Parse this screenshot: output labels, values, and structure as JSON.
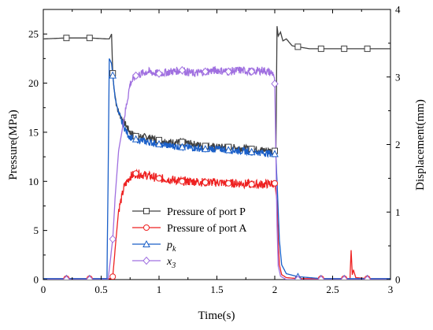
{
  "chart_data": {
    "type": "line",
    "xlabel": "Time(s)",
    "ylabel_left": "Pressure(MPa)",
    "ylabel_right": "Displacement(mm)",
    "xlim": [
      0,
      3
    ],
    "ylim_left": [
      0,
      27.5
    ],
    "ylim_right": [
      0,
      4
    ],
    "x_ticks": [
      "0",
      "0.5",
      "1",
      "1.5",
      "2",
      "2.5",
      "3"
    ],
    "y_left_ticks": [
      "0",
      "5",
      "10",
      "15",
      "20",
      "25"
    ],
    "y_right_ticks": [
      "0",
      "1",
      "2",
      "3",
      "4"
    ],
    "legend_position": "lower-center",
    "series": [
      {
        "name": "Pressure of port P",
        "axis": "left",
        "color": "#404040",
        "marker": "square",
        "x": [
          0,
          0.2,
          0.4,
          0.55,
          0.57,
          0.59,
          0.6,
          0.61,
          0.63,
          0.65,
          0.7,
          0.75,
          0.8,
          0.9,
          1.0,
          1.1,
          1.2,
          1.3,
          1.4,
          1.5,
          1.6,
          1.7,
          1.8,
          1.9,
          2.0,
          2.01,
          2.02,
          2.03,
          2.05,
          2.07,
          2.1,
          2.15,
          2.2,
          2.3,
          2.4,
          2.6,
          2.8,
          3.0
        ],
        "y": [
          24.5,
          24.6,
          24.6,
          24.5,
          24.5,
          25.0,
          21.0,
          19.5,
          18.0,
          17.0,
          16.0,
          15.0,
          14.6,
          14.5,
          14.2,
          14.0,
          14.0,
          13.8,
          13.6,
          13.5,
          13.5,
          13.4,
          13.3,
          13.2,
          13.1,
          13.3,
          25.8,
          24.8,
          25.2,
          24.3,
          24.5,
          23.8,
          23.7,
          23.5,
          23.5,
          23.5,
          23.5,
          23.5
        ]
      },
      {
        "name": "Pressure of port A",
        "axis": "left",
        "color": "#ee2222",
        "marker": "circle",
        "x": [
          0,
          0.2,
          0.4,
          0.58,
          0.6,
          0.62,
          0.65,
          0.7,
          0.75,
          0.8,
          0.9,
          1.0,
          1.1,
          1.2,
          1.3,
          1.4,
          1.5,
          1.6,
          1.7,
          1.8,
          1.9,
          2.0,
          2.02,
          2.03,
          2.04,
          2.06,
          2.1,
          2.2,
          2.4,
          2.6,
          2.65,
          2.66,
          2.67,
          2.68,
          2.7,
          2.8,
          3.0
        ],
        "y": [
          0.1,
          0.1,
          0.1,
          0.1,
          0.3,
          3.0,
          7.0,
          9.5,
          10.5,
          10.8,
          10.6,
          10.3,
          10.2,
          10.0,
          10.0,
          9.9,
          9.9,
          9.8,
          9.8,
          9.7,
          9.7,
          9.8,
          8.0,
          4.0,
          1.5,
          0.5,
          0.2,
          0.1,
          0.1,
          0.1,
          0.1,
          3.0,
          0.5,
          1.0,
          0.2,
          0.1,
          0.1
        ]
      },
      {
        "name": "p_k",
        "axis": "left",
        "color": "#1a5fc8",
        "marker": "triangle",
        "x": [
          0,
          0.2,
          0.4,
          0.55,
          0.56,
          0.57,
          0.59,
          0.6,
          0.62,
          0.65,
          0.68,
          0.72,
          0.75,
          0.8,
          0.9,
          1.0,
          1.1,
          1.2,
          1.3,
          1.4,
          1.5,
          1.6,
          1.7,
          1.8,
          1.9,
          2.0,
          2.01,
          2.02,
          2.04,
          2.06,
          2.1,
          2.2,
          2.4,
          2.6,
          2.8,
          3.0
        ],
        "y": [
          0.1,
          0.1,
          0.1,
          0.1,
          10.0,
          22.5,
          22.0,
          20.8,
          18.5,
          17.0,
          16.0,
          15.0,
          14.5,
          14.3,
          14.0,
          13.8,
          13.6,
          13.5,
          13.4,
          13.3,
          13.3,
          13.2,
          13.1,
          13.0,
          12.9,
          12.8,
          12.5,
          10.0,
          4.0,
          1.5,
          0.6,
          0.3,
          0.1,
          0.1,
          0.1,
          0.1
        ]
      },
      {
        "name": "x_3",
        "axis": "right",
        "color": "#a070e0",
        "marker": "diamond",
        "x": [
          0,
          0.2,
          0.4,
          0.56,
          0.58,
          0.6,
          0.62,
          0.65,
          0.7,
          0.75,
          0.8,
          0.9,
          1.0,
          1.1,
          1.2,
          1.3,
          1.4,
          1.5,
          1.6,
          1.7,
          1.8,
          1.9,
          1.99,
          2.0,
          2.01,
          2.02,
          2.03,
          2.05,
          2.1,
          2.2,
          2.4,
          2.6,
          2.8,
          3.0
        ],
        "y": [
          0,
          0,
          0,
          0,
          0.3,
          0.6,
          1.2,
          1.9,
          2.4,
          2.9,
          3.02,
          3.08,
          3.05,
          3.08,
          3.1,
          3.05,
          3.08,
          3.1,
          3.08,
          3.1,
          3.08,
          3.1,
          3.05,
          2.9,
          1.8,
          0.8,
          0.2,
          0.05,
          0,
          0,
          0,
          0,
          0,
          0
        ]
      }
    ],
    "markers_x": [
      0.2,
      0.4,
      0.6,
      0.8,
      1.0,
      1.2,
      1.4,
      1.6,
      1.8,
      2.0,
      2.2,
      2.4,
      2.6,
      2.8
    ],
    "legend": [
      {
        "label": "Pressure of port P",
        "italic": false,
        "sub": ""
      },
      {
        "label": "Pressure of port A",
        "italic": false,
        "sub": ""
      },
      {
        "label": "p",
        "italic": true,
        "sub": "k"
      },
      {
        "label": "x",
        "italic": true,
        "sub": "3"
      }
    ]
  }
}
